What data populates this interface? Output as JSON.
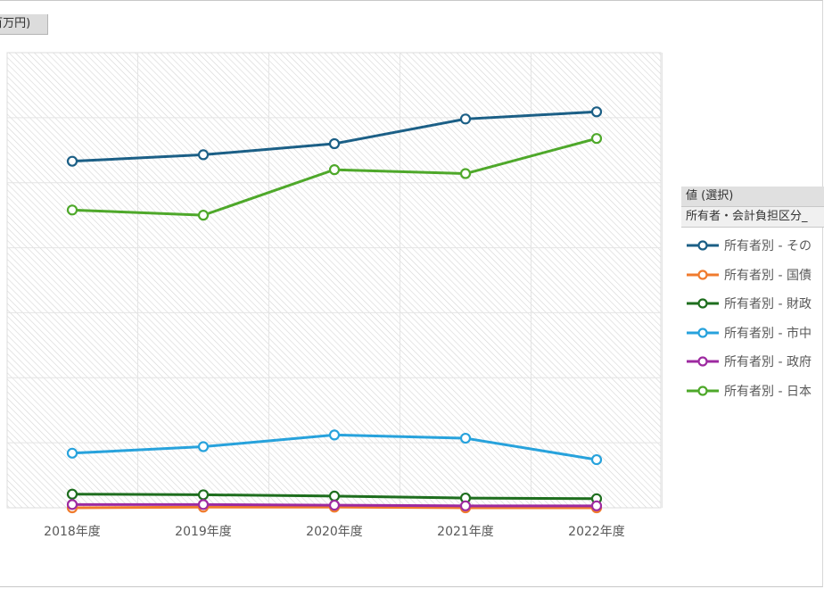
{
  "unit_label": "(百万円)",
  "legend": {
    "title": "値 (選択)",
    "subtitle": "所有者・会計負担区分_",
    "items": [
      {
        "label": "所有者別 - その",
        "color": "#1b5f86"
      },
      {
        "label": "所有者別 - 国債",
        "color": "#f07b2e"
      },
      {
        "label": "所有者別 - 財政",
        "color": "#1e6e1e"
      },
      {
        "label": "所有者別 - 市中",
        "color": "#27a2dc"
      },
      {
        "label": "所有者別 - 政府",
        "color": "#9d2aa0"
      },
      {
        "label": "所有者別 - 日本",
        "color": "#4ea82a"
      }
    ]
  },
  "chart_data": {
    "type": "line",
    "categories": [
      "2018年度",
      "2019年度",
      "2020年度",
      "2021年度",
      "2022年度"
    ],
    "ylim": [
      0,
      7
    ],
    "grid": true,
    "legend_position": "right",
    "series": [
      {
        "name": "所有者別 - その",
        "color": "#1b5f86",
        "values": [
          5.33,
          5.43,
          5.6,
          5.98,
          6.09
        ]
      },
      {
        "name": "所有者別 - 国債",
        "color": "#f07b2e",
        "values": [
          0.0,
          0.01,
          0.01,
          0.0,
          0.0
        ]
      },
      {
        "name": "所有者別 - 財政",
        "color": "#1e6e1e",
        "values": [
          0.21,
          0.2,
          0.18,
          0.15,
          0.14
        ]
      },
      {
        "name": "所有者別 - 市中",
        "color": "#27a2dc",
        "values": [
          0.84,
          0.94,
          1.12,
          1.07,
          0.74
        ]
      },
      {
        "name": "所有者別 - 政府",
        "color": "#9d2aa0",
        "values": [
          0.05,
          0.05,
          0.04,
          0.03,
          0.03
        ]
      },
      {
        "name": "所有者別 - 日本",
        "color": "#4ea82a",
        "values": [
          4.58,
          4.5,
          5.2,
          5.14,
          5.68
        ]
      }
    ]
  }
}
